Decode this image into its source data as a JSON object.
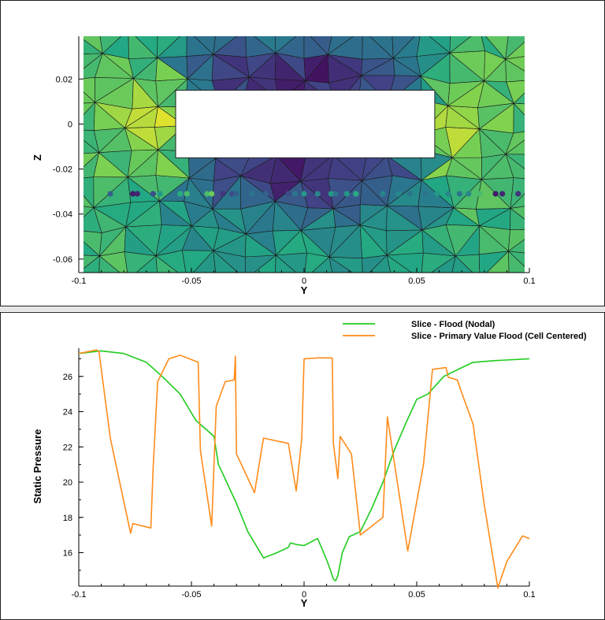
{
  "colors": {
    "nodal": "#1fcc1f",
    "cell_centered": "#ff8c1a",
    "mesh_line": "#1a1a1a"
  },
  "chart_data": [
    {
      "type": "heatmap",
      "xlabel": "Y",
      "ylabel": "Z",
      "xlim": [
        -0.1,
        0.1
      ],
      "ylim": [
        -0.066,
        0.039
      ],
      "x_ticks": [
        "-0.1",
        "-0.05",
        "0",
        "0.05",
        "0.1"
      ],
      "y_ticks": [
        "0.02",
        "0",
        "-0.02",
        "-0.04",
        "-0.06"
      ],
      "obstacle": {
        "y_min": -0.057,
        "y_max": 0.058,
        "z_min": -0.015,
        "z_max": 0.015
      },
      "probe_z": -0.031,
      "probe_points_y": [
        -0.099,
        -0.086,
        -0.076,
        -0.074,
        -0.067,
        -0.064,
        -0.055,
        -0.052,
        -0.043,
        -0.041,
        -0.036,
        -0.032,
        -0.03,
        -0.023,
        -0.017,
        -0.007,
        -0.004,
        0.0,
        0.006,
        0.012,
        0.014,
        0.019,
        0.023,
        0.035,
        0.042,
        0.047,
        0.054,
        0.059,
        0.064,
        0.069,
        0.073,
        0.078,
        0.085,
        0.088,
        0.095,
        0.099
      ],
      "probe_values": [
        21,
        19,
        16,
        16.5,
        18,
        22,
        23,
        24,
        24,
        25,
        17,
        18,
        19,
        20,
        19,
        18,
        20,
        22,
        21,
        22,
        20,
        22,
        23,
        21,
        21,
        20,
        20,
        22,
        21,
        20,
        21,
        24,
        16,
        16.5,
        17,
        17
      ],
      "colormap_range": [
        15,
        28
      ]
    },
    {
      "type": "line",
      "xlabel": "Y",
      "ylabel": "Static Pressure",
      "xlim": [
        -0.1,
        0.1
      ],
      "ylim": [
        14.1,
        27.6
      ],
      "x_ticks": [
        "-0.1",
        "-0.05",
        "0",
        "0.05",
        "0.1"
      ],
      "y_ticks": [
        "16",
        "18",
        "20",
        "22",
        "24",
        "26"
      ],
      "legend_position": "top-right",
      "series": [
        {
          "name": "Slice - Flood (Nodal)",
          "x": [
            -0.1,
            -0.09,
            -0.08,
            -0.07,
            -0.063,
            -0.055,
            -0.048,
            -0.04,
            -0.038,
            -0.03,
            -0.025,
            -0.018,
            -0.012,
            -0.007,
            -0.006,
            -0.003,
            0.0,
            0.006,
            0.01,
            0.012,
            0.013,
            0.014,
            0.015,
            0.017,
            0.02,
            0.025,
            0.03,
            0.035,
            0.04,
            0.045,
            0.05,
            0.055,
            0.062,
            0.07,
            0.075,
            0.085,
            0.1
          ],
          "y": [
            27.3,
            27.45,
            27.3,
            26.8,
            26.0,
            25.0,
            23.5,
            22.6,
            21.0,
            18.8,
            17.2,
            15.7,
            16.0,
            16.3,
            16.55,
            16.45,
            16.4,
            16.8,
            15.6,
            14.9,
            14.5,
            14.4,
            14.7,
            16.0,
            16.9,
            17.2,
            18.5,
            20.0,
            21.8,
            23.3,
            24.7,
            25.0,
            26.0,
            26.5,
            26.8,
            26.9,
            27.0
          ]
        },
        {
          "name": "Slice - Primary Value Flood (Cell Centered)",
          "x": [
            -0.1,
            -0.092,
            -0.091,
            -0.086,
            -0.077,
            -0.076,
            -0.068,
            -0.067,
            -0.065,
            -0.06,
            -0.055,
            -0.047,
            -0.046,
            -0.041,
            -0.039,
            -0.035,
            -0.031,
            -0.0305,
            -0.03,
            -0.022,
            -0.018,
            -0.007,
            -0.0035,
            -0.001,
            0.0,
            0.006,
            0.0125,
            0.013,
            0.015,
            0.016,
            0.021,
            0.025,
            0.035,
            0.037,
            0.046,
            0.053,
            0.057,
            0.063,
            0.064,
            0.068,
            0.071,
            0.075,
            0.08,
            0.086,
            0.09,
            0.097,
            0.1
          ],
          "y": [
            27.3,
            27.5,
            27.4,
            22.5,
            17.1,
            17.65,
            17.4,
            20.8,
            25.7,
            27.0,
            27.2,
            26.8,
            21.8,
            17.5,
            24.3,
            25.7,
            25.8,
            27.15,
            21.6,
            19.4,
            22.5,
            22.2,
            19.5,
            22.5,
            27.0,
            27.05,
            27.05,
            22.2,
            20.2,
            22.6,
            21.6,
            17.0,
            18.0,
            23.7,
            16.1,
            21.0,
            26.4,
            26.5,
            25.95,
            25.8,
            24.7,
            23.3,
            18.7,
            14.0,
            15.5,
            16.95,
            16.8
          ]
        }
      ]
    }
  ]
}
